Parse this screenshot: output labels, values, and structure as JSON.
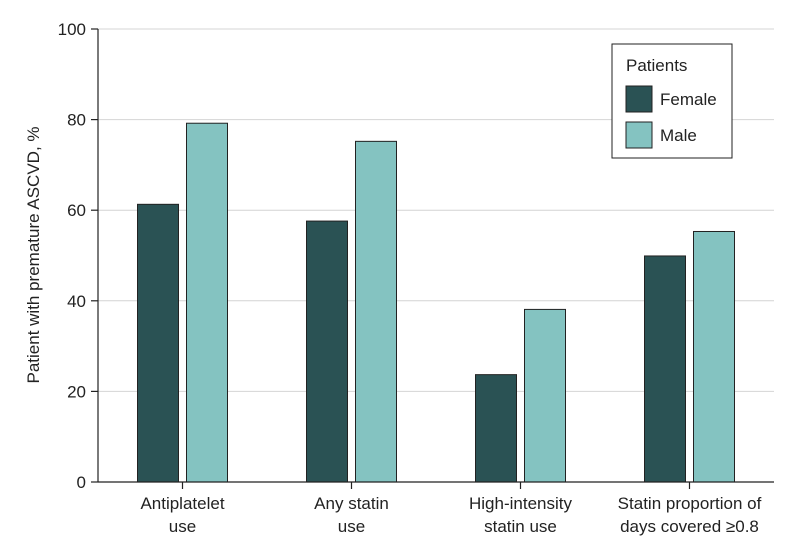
{
  "chart_data": {
    "type": "bar",
    "title": "",
    "xlabel": "",
    "ylabel": "Patient with premature ASCVD, %",
    "ylim": [
      0,
      100
    ],
    "yticks": [
      0,
      20,
      40,
      60,
      80,
      100
    ],
    "grid": true,
    "categories": [
      [
        "Antiplatelet",
        "use"
      ],
      [
        "Any statin",
        "use"
      ],
      [
        "High-intensity",
        "statin use"
      ],
      [
        "Statin proportion of",
        "days covered ≥0.8"
      ]
    ],
    "series": [
      {
        "name": "Female",
        "color": "#2a5254",
        "values": [
          61.3,
          57.6,
          23.7,
          49.9
        ]
      },
      {
        "name": "Male",
        "color": "#84c3c1",
        "values": [
          79.2,
          75.2,
          38.1,
          55.3
        ]
      }
    ],
    "legend": {
      "title": "Patients",
      "placement": "top-right"
    }
  }
}
